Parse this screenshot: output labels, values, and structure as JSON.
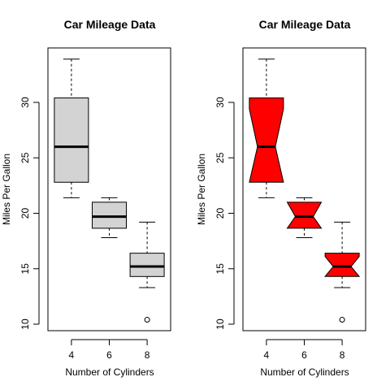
{
  "chart_data": [
    {
      "type": "boxplot",
      "title": "Car Mileage Data",
      "xlabel": "Number of Cylinders",
      "ylabel": "Miles Per Gallon",
      "notch": false,
      "fill": "#d3d3d3",
      "categories": [
        "4",
        "6",
        "8"
      ],
      "ylim": [
        10,
        34
      ],
      "yticks": [
        10,
        15,
        20,
        25,
        30
      ],
      "boxes": [
        {
          "category": "4",
          "whisker_low": 21.4,
          "q1": 22.8,
          "median": 26.0,
          "q3": 30.4,
          "whisker_high": 33.9,
          "outliers": []
        },
        {
          "category": "6",
          "whisker_low": 17.8,
          "q1": 18.65,
          "median": 19.7,
          "q3": 21.0,
          "whisker_high": 21.4,
          "outliers": []
        },
        {
          "category": "8",
          "whisker_low": 13.3,
          "q1": 14.3,
          "median": 15.2,
          "q3": 16.4,
          "whisker_high": 19.2,
          "outliers": [
            10.4
          ]
        }
      ],
      "grid": false,
      "legend": "none"
    },
    {
      "type": "boxplot",
      "title": "Car Mileage Data",
      "xlabel": "Number of Cylinders",
      "ylabel": "Miles Per Gallon",
      "notch": true,
      "fill": "#ff0000",
      "categories": [
        "4",
        "6",
        "8"
      ],
      "ylim": [
        10,
        34
      ],
      "yticks": [
        10,
        15,
        20,
        25,
        30
      ],
      "boxes": [
        {
          "category": "4",
          "whisker_low": 21.4,
          "q1": 22.8,
          "median": 26.0,
          "q3": 30.4,
          "whisker_high": 33.9,
          "notch_low": 22.6,
          "notch_high": 29.4,
          "outliers": []
        },
        {
          "category": "6",
          "whisker_low": 17.8,
          "q1": 18.65,
          "median": 19.7,
          "q3": 21.0,
          "whisker_high": 21.4,
          "notch_low": 18.3,
          "notch_high": 21.1,
          "outliers": []
        },
        {
          "category": "8",
          "whisker_low": 13.3,
          "q1": 14.3,
          "median": 15.2,
          "q3": 16.4,
          "whisker_high": 19.2,
          "notch_low": 14.3,
          "notch_high": 16.1,
          "outliers": [
            10.4
          ]
        }
      ],
      "grid": false,
      "legend": "none"
    }
  ]
}
